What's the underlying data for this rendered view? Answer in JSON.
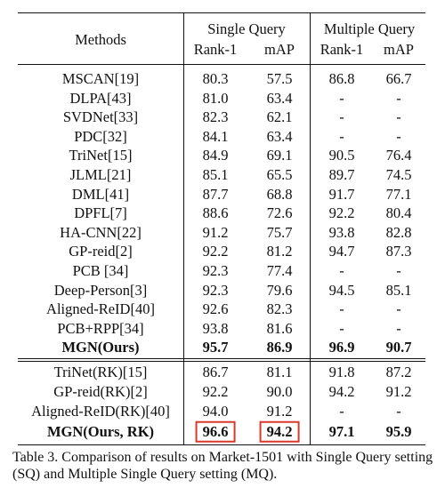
{
  "table": {
    "header": {
      "methods": "Methods",
      "groups": [
        "Single Query",
        "Multiple Query"
      ],
      "metrics": [
        "Rank-1",
        "mAP",
        "Rank-1",
        "mAP"
      ]
    },
    "groups": [
      [
        {
          "cells": [
            "MSCAN[19]",
            "80.3",
            "57.5",
            "86.8",
            "66.7"
          ]
        },
        {
          "cells": [
            "DLPA[43]",
            "81.0",
            "63.4",
            "-",
            "-"
          ]
        },
        {
          "cells": [
            "SVDNet[33]",
            "82.3",
            "62.1",
            "-",
            "-"
          ]
        },
        {
          "cells": [
            "PDC[32]",
            "84.1",
            "63.4",
            "-",
            "-"
          ]
        },
        {
          "cells": [
            "TriNet[15]",
            "84.9",
            "69.1",
            "90.5",
            "76.4"
          ]
        },
        {
          "cells": [
            "JLML[21]",
            "85.1",
            "65.5",
            "89.7",
            "74.5"
          ]
        },
        {
          "cells": [
            "DML[41]",
            "87.7",
            "68.8",
            "91.7",
            "77.1"
          ]
        },
        {
          "cells": [
            "DPFL[7]",
            "88.6",
            "72.6",
            "92.2",
            "80.4"
          ]
        },
        {
          "cells": [
            "HA-CNN[22]",
            "91.2",
            "75.7",
            "93.8",
            "82.8"
          ]
        },
        {
          "cells": [
            "GP-reid[2]",
            "92.2",
            "81.2",
            "94.7",
            "87.3"
          ]
        },
        {
          "cells": [
            "PCB [34]",
            "92.3",
            "77.4",
            "-",
            "-"
          ]
        },
        {
          "cells": [
            "Deep-Person[3]",
            "92.3",
            "79.6",
            "94.5",
            "85.1"
          ]
        },
        {
          "cells": [
            "Aligned-ReID[40]",
            "92.6",
            "82.3",
            "-",
            "-"
          ]
        },
        {
          "cells": [
            "PCB+RPP[34]",
            "93.8",
            "81.6",
            "-",
            "-"
          ]
        },
        {
          "cells": [
            "MGN(Ours)",
            "95.7",
            "86.9",
            "96.9",
            "90.7"
          ],
          "bold": true
        }
      ],
      [
        {
          "cells": [
            "TriNet(RK)[15]",
            "86.7",
            "81.1",
            "91.8",
            "87.2"
          ]
        },
        {
          "cells": [
            "GP-reid(RK)[2]",
            "92.2",
            "90.0",
            "94.2",
            "91.2"
          ]
        },
        {
          "cells": [
            "Aligned-ReID(RK)[40]",
            "94.0",
            "91.2",
            "-",
            "-"
          ]
        },
        {
          "cells": [
            "MGN(Ours, RK)",
            "96.6",
            "94.2",
            "97.1",
            "95.9"
          ],
          "bold": true,
          "boxed": [
            1,
            2
          ]
        }
      ]
    ]
  },
  "caption": "Table 3. Comparison of results on Market-1501 with Single Query setting (SQ) and Multiple Single Query setting (MQ)."
}
